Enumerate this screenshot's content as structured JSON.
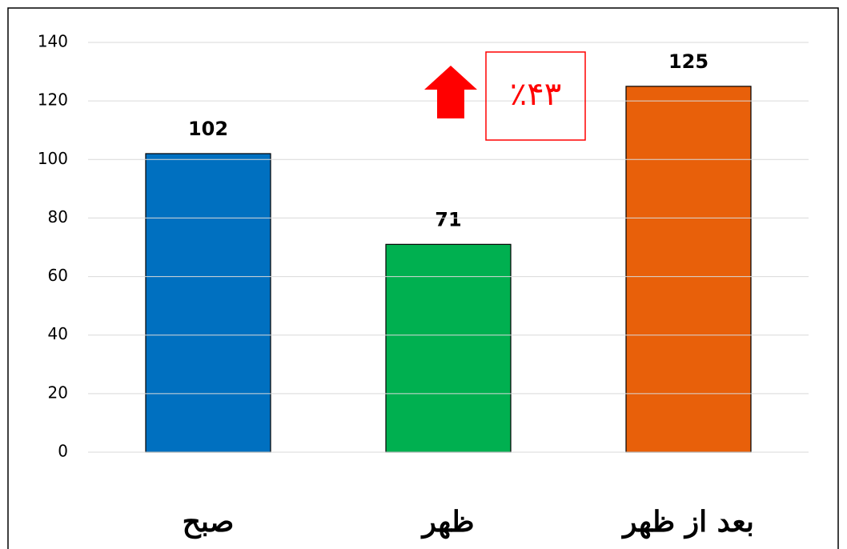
{
  "chart_data": {
    "type": "bar",
    "categories": [
      "صبح",
      "ظهر",
      "بعد از ظهر"
    ],
    "values": [
      102,
      71,
      125
    ],
    "colors": [
      "#0070c0",
      "#00b050",
      "#e8600a"
    ],
    "ylim": [
      0,
      140
    ],
    "yticks": [
      0,
      20,
      40,
      60,
      80,
      100,
      120,
      140
    ],
    "grid": true,
    "annotation": "٪۴۳"
  }
}
